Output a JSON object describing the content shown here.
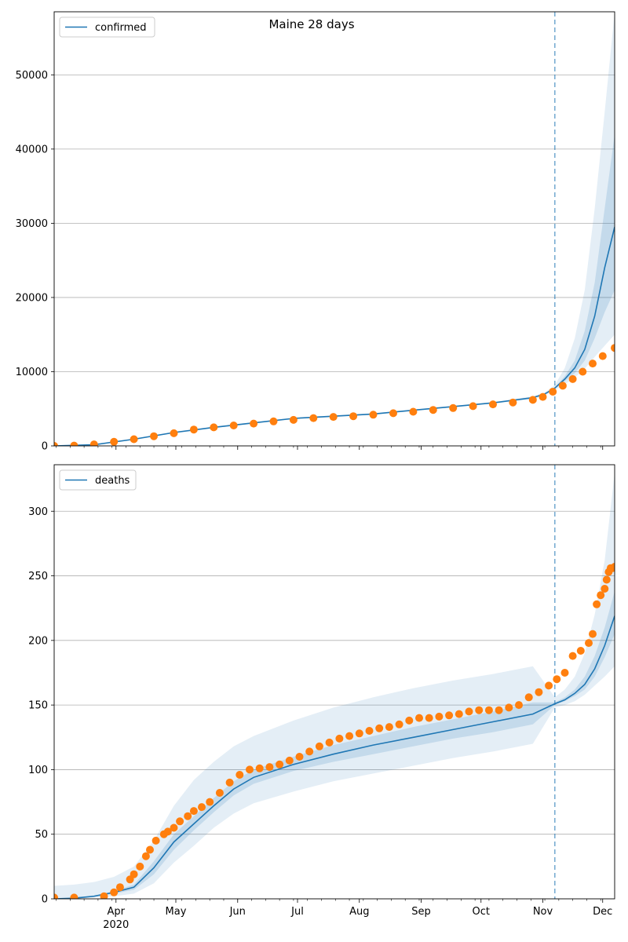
{
  "figure_title": "Maine 28 days",
  "colors": {
    "model_line": "#1f77b4",
    "band": "#1f77b4",
    "observed": "#ff7f0e",
    "forecast_marker": "#1f77b4",
    "grid": "#b0b0b0"
  },
  "x_axis": {
    "tick_labels": [
      "Apr",
      "May",
      "Jun",
      "Jul",
      "Aug",
      "Sep",
      "Oct",
      "Nov",
      "Dec"
    ],
    "year_label": "2020"
  },
  "chart_data": [
    {
      "type": "line",
      "panel": "top",
      "title": "Maine 28 days",
      "legend": "confirmed",
      "legend_position": "top-left",
      "xlabel": "",
      "ylabel": "",
      "x_unit": "days since 2020-03-01",
      "xlim": [
        0,
        281
      ],
      "ylim": [
        0,
        58500
      ],
      "yticks": [
        0,
        10000,
        20000,
        30000,
        40000,
        50000
      ],
      "grid": "horizontal",
      "forecast_start_day": 251,
      "model": {
        "days": [
          0,
          20,
          40,
          60,
          80,
          100,
          120,
          140,
          160,
          180,
          200,
          220,
          240,
          246,
          251,
          256,
          261,
          266,
          271,
          276,
          281
        ],
        "median": [
          0,
          150,
          900,
          1800,
          2500,
          3100,
          3700,
          4000,
          4300,
          4800,
          5300,
          5800,
          6500,
          7000,
          7800,
          9000,
          10500,
          13000,
          17500,
          24000,
          29500
        ],
        "band50_lo": [
          0,
          140,
          850,
          1750,
          2450,
          3050,
          3650,
          3950,
          4250,
          4750,
          5250,
          5750,
          6400,
          6900,
          7700,
          8700,
          9800,
          11500,
          14500,
          18000,
          21000
        ],
        "band50_hi": [
          0,
          160,
          950,
          1850,
          2550,
          3150,
          3750,
          4050,
          4350,
          4850,
          5350,
          5850,
          6600,
          7100,
          7900,
          9400,
          11500,
          15500,
          22000,
          32000,
          42000
        ],
        "band90_lo": [
          0,
          120,
          800,
          1700,
          2400,
          3000,
          3600,
          3900,
          4200,
          4700,
          5200,
          5700,
          6300,
          6800,
          7500,
          8300,
          9200,
          10400,
          12000,
          13500,
          15000
        ],
        "band90_hi": [
          0,
          180,
          1000,
          1900,
          2600,
          3200,
          3800,
          4100,
          4400,
          4900,
          5400,
          5900,
          6700,
          7200,
          8200,
          10500,
          14500,
          21000,
          32000,
          45000,
          58500
        ]
      },
      "observed": {
        "days": [
          0,
          10,
          20,
          30,
          40,
          50,
          60,
          70,
          80,
          90,
          100,
          110,
          120,
          130,
          140,
          150,
          160,
          170,
          180,
          190,
          200,
          210,
          220,
          230,
          240,
          245,
          250,
          255,
          260,
          265,
          270,
          275,
          281
        ],
        "values": [
          0,
          40,
          200,
          550,
          900,
          1300,
          1700,
          2200,
          2500,
          2750,
          3000,
          3300,
          3500,
          3750,
          3900,
          4000,
          4200,
          4400,
          4600,
          4850,
          5100,
          5350,
          5600,
          5850,
          6200,
          6600,
          7300,
          8100,
          9000,
          10000,
          11100,
          12100,
          13200
        ]
      }
    },
    {
      "type": "line",
      "panel": "bottom",
      "legend": "deaths",
      "legend_position": "top-left",
      "xlabel": "",
      "ylabel": "",
      "x_unit": "days since 2020-03-01",
      "xlim": [
        0,
        281
      ],
      "ylim": [
        0,
        336
      ],
      "yticks": [
        0,
        50,
        100,
        150,
        200,
        250,
        300
      ],
      "grid": "horizontal",
      "forecast_start_day": 251,
      "model": {
        "days": [
          0,
          10,
          20,
          30,
          40,
          50,
          60,
          70,
          80,
          90,
          100,
          120,
          140,
          160,
          180,
          200,
          220,
          240,
          251,
          256,
          261,
          266,
          271,
          276,
          281
        ],
        "median": [
          0,
          0.5,
          2,
          5,
          9,
          24,
          44,
          58,
          72,
          85,
          94,
          104,
          112,
          119,
          125,
          131,
          137,
          143,
          151,
          154,
          159,
          166,
          178,
          196,
          219
        ],
        "band50_lo": [
          0,
          0.4,
          1.6,
          4,
          7,
          19,
          38,
          53,
          67,
          80,
          89,
          99,
          106,
          112,
          118,
          124,
          129,
          135,
          150,
          153,
          157,
          162,
          172,
          187,
          205
        ],
        "band50_hi": [
          0,
          0.6,
          2.4,
          6,
          11,
          29,
          50,
          64,
          78,
          91,
          100,
          110,
          119,
          126,
          133,
          139,
          145,
          152,
          152,
          156,
          162,
          172,
          188,
          210,
          238
        ],
        "band90_lo": [
          0,
          0.2,
          1,
          2,
          4,
          12,
          28,
          41,
          55,
          66,
          74,
          83,
          91,
          97,
          103,
          109,
          114,
          120,
          148,
          150,
          153,
          158,
          165,
          172,
          180
        ],
        "band90_hi": [
          10,
          11,
          13,
          17,
          25,
          45,
          72,
          92,
          106,
          118,
          126,
          138,
          148,
          156,
          163,
          169,
          174,
          180,
          156,
          162,
          172,
          190,
          220,
          262,
          330
        ]
      },
      "observed": {
        "days": [
          0,
          10,
          25,
          30,
          33,
          38,
          40,
          43,
          46,
          48,
          51,
          55,
          57,
          60,
          63,
          67,
          70,
          74,
          78,
          83,
          88,
          93,
          98,
          103,
          108,
          113,
          118,
          123,
          128,
          133,
          138,
          143,
          148,
          153,
          158,
          163,
          168,
          173,
          178,
          183,
          188,
          193,
          198,
          203,
          208,
          213,
          218,
          223,
          228,
          233,
          238,
          243,
          248,
          252,
          256,
          260,
          264,
          268,
          270,
          272,
          274,
          276,
          277,
          278,
          279,
          280,
          281
        ],
        "values": [
          1,
          1,
          2,
          5,
          9,
          15,
          19,
          25,
          33,
          38,
          45,
          50,
          52,
          55,
          60,
          64,
          68,
          71,
          75,
          82,
          90,
          96,
          100,
          101,
          102,
          104,
          107,
          110,
          114,
          118,
          121,
          124,
          126,
          128,
          130,
          132,
          133,
          135,
          138,
          140,
          140,
          141,
          142,
          143,
          145,
          146,
          146,
          146,
          148,
          150,
          156,
          160,
          165,
          170,
          175,
          188,
          192,
          198,
          205,
          228,
          235,
          240,
          247,
          253,
          256,
          256,
          257
        ]
      }
    }
  ]
}
